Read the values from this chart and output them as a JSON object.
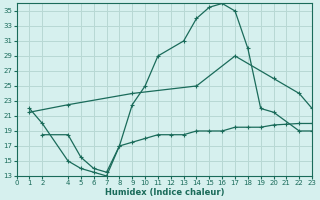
{
  "xlabel": "Humidex (Indice chaleur)",
  "bg_color": "#d6f0ee",
  "grid_color": "#b8d8d4",
  "line_color": "#1a6b5a",
  "ylim": [
    13,
    36
  ],
  "xlim": [
    0,
    23
  ],
  "yticks": [
    13,
    15,
    17,
    19,
    21,
    23,
    25,
    27,
    29,
    31,
    33,
    35
  ],
  "xticks": [
    0,
    1,
    2,
    4,
    5,
    6,
    7,
    8,
    9,
    10,
    11,
    12,
    13,
    14,
    15,
    16,
    17,
    18,
    19,
    20,
    21,
    22,
    23
  ],
  "curve1_x": [
    1,
    2,
    4,
    5,
    6,
    7,
    8,
    9,
    10,
    11,
    13,
    14,
    15,
    16,
    17,
    18,
    19,
    20,
    22,
    23
  ],
  "curve1_y": [
    22,
    20,
    15,
    14,
    13.5,
    13,
    17,
    22.5,
    25,
    29,
    31,
    34,
    35.5,
    36,
    35,
    30,
    22,
    21.5,
    19,
    19
  ],
  "curve2_x": [
    1,
    4,
    9,
    14,
    17,
    20,
    22,
    23
  ],
  "curve2_y": [
    21.5,
    22.5,
    24,
    25,
    29,
    26,
    24,
    22
  ],
  "curve3_x": [
    2,
    4,
    5,
    6,
    7,
    8,
    9,
    10,
    11,
    12,
    13,
    14,
    15,
    16,
    17,
    18,
    19,
    20,
    21,
    22,
    23
  ],
  "curve3_y": [
    18.5,
    18.5,
    15.5,
    14,
    13.5,
    17,
    17.5,
    18,
    18.5,
    18.5,
    18.5,
    19,
    19,
    19,
    19.5,
    19.5,
    19.5,
    19.8,
    19.9,
    20,
    20
  ]
}
